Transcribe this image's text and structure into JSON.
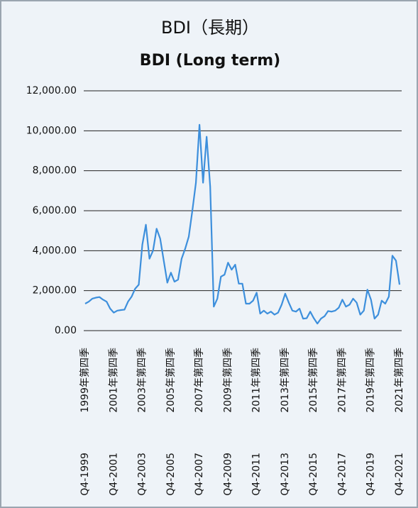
{
  "chart_data": {
    "type": "line",
    "title": "BDI（長期）",
    "subtitle": "BDI (Long term)",
    "categories": [
      "Q4-1999",
      null,
      null,
      null,
      null,
      null,
      null,
      null,
      "Q4-2001",
      null,
      null,
      null,
      null,
      null,
      null,
      null,
      "Q4-2003",
      null,
      null,
      null,
      null,
      null,
      null,
      null,
      "Q4-2005",
      null,
      null,
      null,
      null,
      null,
      null,
      null,
      "Q4-2007",
      null,
      null,
      null,
      null,
      null,
      null,
      null,
      "Q4-2009",
      null,
      null,
      null,
      null,
      null,
      null,
      null,
      "Q4-2011",
      null,
      null,
      null,
      null,
      null,
      null,
      null,
      "Q4-2013",
      null,
      null,
      null,
      null,
      null,
      null,
      null,
      "Q4-2015",
      null,
      null,
      null,
      null,
      null,
      null,
      null,
      "Q4-2017",
      null,
      null,
      null,
      null,
      null,
      null,
      null,
      "Q4-2019",
      null,
      null,
      null,
      null,
      null,
      null,
      null,
      "Q4-2021"
    ],
    "categories_zh": [
      "1999年第四季",
      null,
      null,
      null,
      null,
      null,
      null,
      null,
      "2001年第四季",
      null,
      null,
      null,
      null,
      null,
      null,
      null,
      "2003年第四季",
      null,
      null,
      null,
      null,
      null,
      null,
      null,
      "2005年第四季",
      null,
      null,
      null,
      null,
      null,
      null,
      null,
      "2007年第四季",
      null,
      null,
      null,
      null,
      null,
      null,
      null,
      "2009年第四季",
      null,
      null,
      null,
      null,
      null,
      null,
      null,
      "2011年第四季",
      null,
      null,
      null,
      null,
      null,
      null,
      null,
      "2013年第四季",
      null,
      null,
      null,
      null,
      null,
      null,
      null,
      "2015年第四季",
      null,
      null,
      null,
      null,
      null,
      null,
      null,
      "2017年第四季",
      null,
      null,
      null,
      null,
      null,
      null,
      null,
      "2019年第四季",
      null,
      null,
      null,
      null,
      null,
      null,
      null,
      "2021年第四季"
    ],
    "values": [
      1350,
      1450,
      1600,
      1650,
      1680,
      1550,
      1450,
      1100,
      900,
      1000,
      1030,
      1050,
      1450,
      1700,
      2100,
      2300,
      4300,
      5300,
      3600,
      4000,
      5100,
      4600,
      3500,
      2400,
      2900,
      2450,
      2550,
      3600,
      4100,
      4700,
      6000,
      7400,
      10300,
      7400,
      9700,
      7200,
      1200,
      1600,
      2700,
      2800,
      3400,
      3050,
      3300,
      2350,
      2350,
      1350,
      1350,
      1500,
      1900,
      850,
      1000,
      850,
      950,
      800,
      900,
      1300,
      1850,
      1400,
      1000,
      950,
      1100,
      600,
      620,
      950,
      620,
      350,
      600,
      720,
      980,
      950,
      1000,
      1150,
      1550,
      1200,
      1300,
      1600,
      1400,
      800,
      1000,
      2050,
      1550,
      600,
      800,
      1500,
      1350,
      1700,
      3750,
      3500,
      2300
    ],
    "color": "#3d8fdc",
    "ylim": [
      0,
      12000
    ],
    "yticks": [
      {
        "value": 0,
        "label": "0.00"
      },
      {
        "value": 2000,
        "label": "2,000.00"
      },
      {
        "value": 4000,
        "label": "4,000.00"
      },
      {
        "value": 6000,
        "label": "6,000.00"
      },
      {
        "value": 8000,
        "label": "8,000.00"
      },
      {
        "value": 10000,
        "label": "10,000.00"
      },
      {
        "value": 12000,
        "label": "12,000.00"
      }
    ],
    "grid": true
  }
}
